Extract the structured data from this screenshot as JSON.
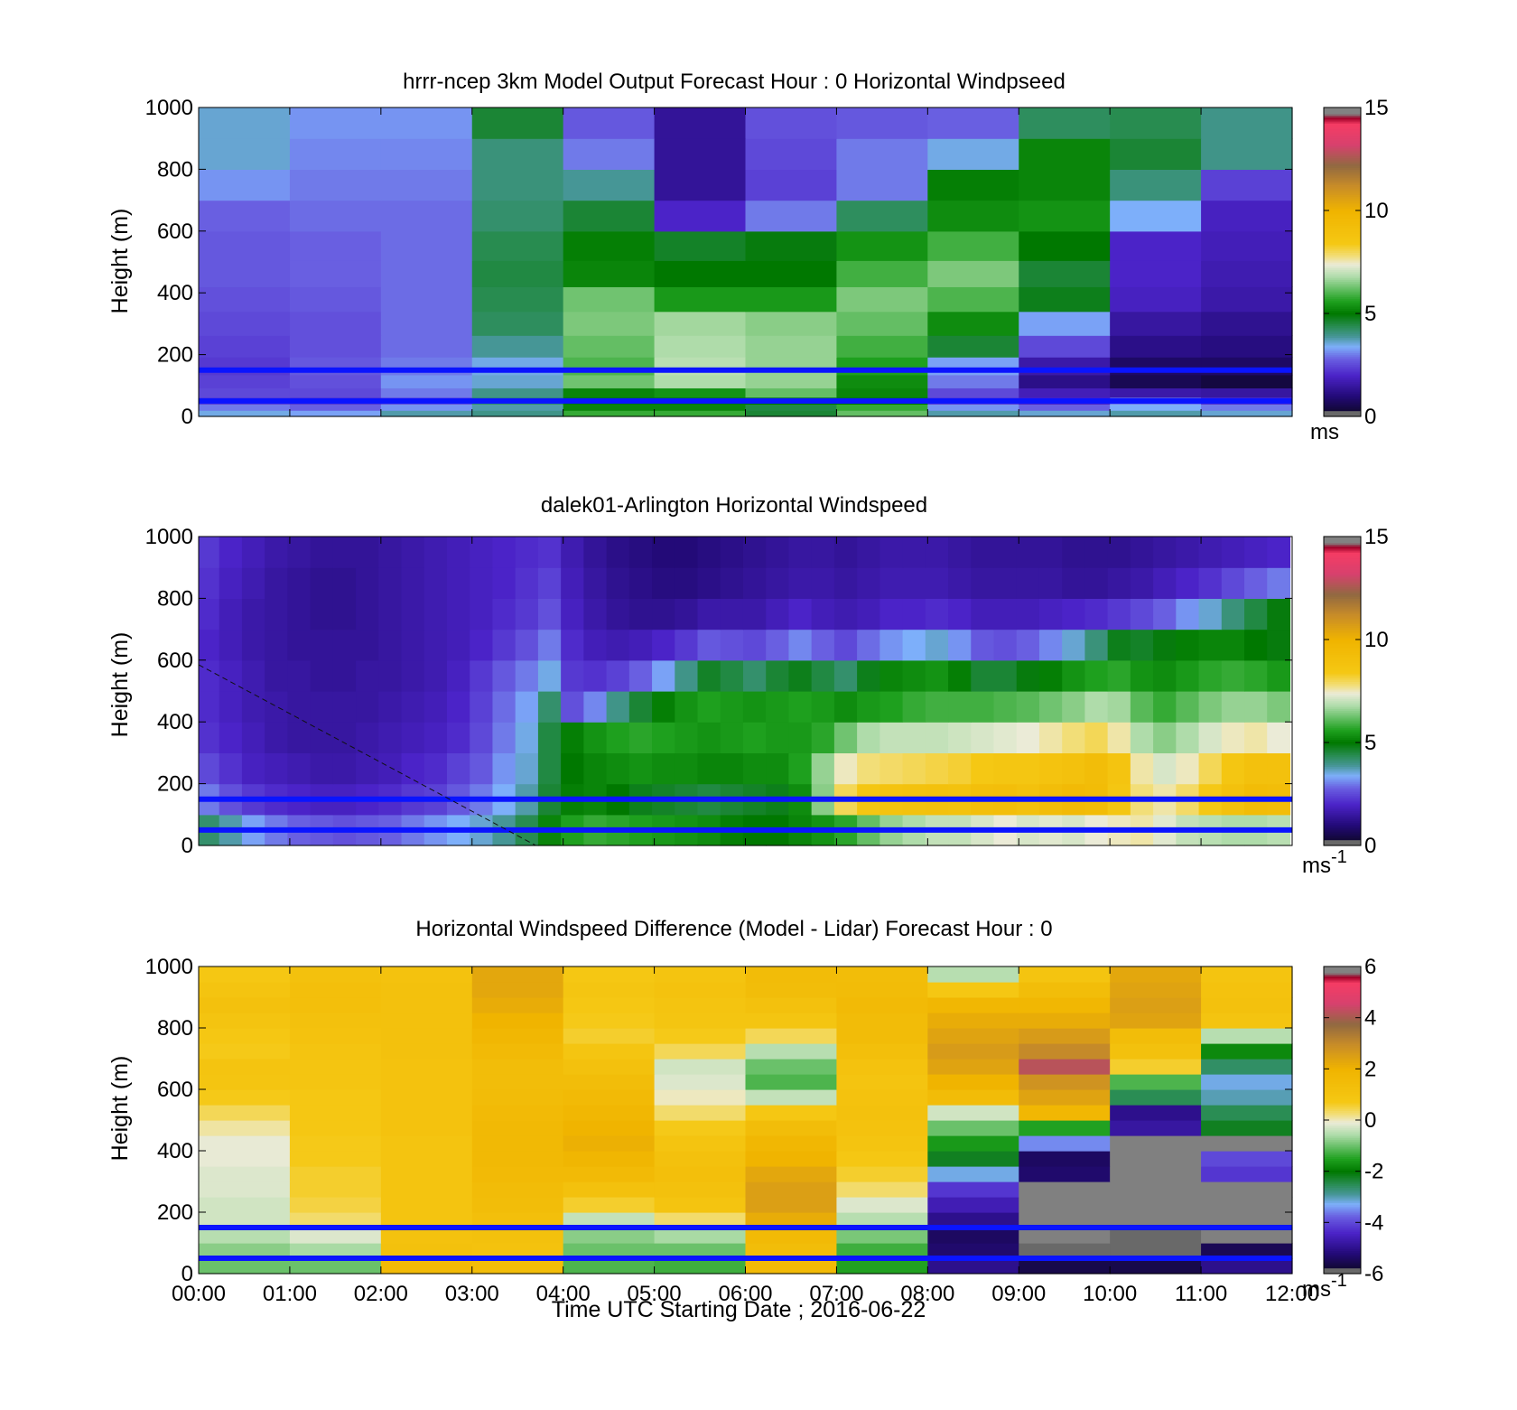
{
  "chart_data": [
    {
      "type": "heatmap",
      "title": "hrrr-ncep 3km Model Output   Forecast Hour : 0 Horizontal Windpseed",
      "ylabel": "Height (m)",
      "xlabel": "",
      "ylim": [
        0,
        1000
      ],
      "yticks": [
        "0",
        "200",
        "400",
        "600",
        "800",
        "1000"
      ],
      "colorbar": {
        "range": [
          0,
          15
        ],
        "ticks": [
          "0",
          "5",
          "10",
          "15"
        ],
        "unit": "ms",
        "unit_sup": ""
      },
      "x_hours": [
        0.5,
        1.5,
        2.5,
        3.5,
        4.5,
        5.5,
        6.5,
        7.5,
        8.5,
        9.5,
        10.5,
        11.5
      ],
      "y_levels": [
        10,
        30,
        50,
        75,
        110,
        160,
        225,
        300,
        380,
        460,
        550,
        650,
        750,
        850,
        950
      ],
      "values": [
        [
          3.5,
          3.3,
          3.8,
          4.0,
          5.8,
          5.8,
          4.6,
          6.2,
          3.8,
          3.6,
          3.8,
          3.6
        ],
        [
          3.0,
          2.8,
          3.2,
          3.8,
          5.2,
          5.2,
          4.5,
          5.8,
          3.2,
          2.8,
          3.4,
          3.0
        ],
        [
          2.4,
          2.3,
          2.6,
          4.2,
          5.0,
          5.0,
          5.0,
          5.0,
          2.4,
          2.0,
          3.0,
          2.2
        ],
        [
          2.5,
          2.5,
          3.0,
          4.0,
          5.2,
          5.4,
          6.2,
          5.2,
          2.5,
          1.8,
          1.6,
          1.5
        ],
        [
          2.4,
          2.6,
          3.2,
          3.6,
          6.3,
          6.8,
          6.6,
          5.3,
          3.0,
          1.2,
          0.6,
          0.4
        ],
        [
          2.3,
          2.7,
          3.0,
          3.5,
          6.0,
          6.9,
          6.6,
          5.6,
          3.3,
          1.6,
          0.8,
          0.8
        ],
        [
          2.4,
          2.6,
          2.9,
          3.9,
          6.2,
          6.8,
          6.6,
          5.9,
          4.6,
          2.5,
          1.2,
          1.1
        ],
        [
          2.5,
          2.6,
          2.9,
          4.3,
          6.4,
          6.7,
          6.5,
          6.2,
          5.3,
          3.3,
          1.5,
          1.3
        ],
        [
          2.6,
          2.7,
          2.9,
          4.4,
          6.3,
          5.5,
          5.5,
          6.4,
          6.0,
          4.8,
          1.9,
          1.6
        ],
        [
          2.7,
          2.8,
          2.9,
          4.5,
          5.2,
          5.0,
          5.0,
          5.9,
          6.4,
          4.6,
          2.0,
          1.7
        ],
        [
          2.7,
          2.8,
          2.9,
          4.4,
          5.1,
          4.7,
          4.9,
          5.4,
          5.9,
          5.0,
          2.0,
          1.8
        ],
        [
          2.8,
          2.9,
          2.9,
          4.2,
          4.6,
          2.0,
          3.0,
          4.3,
          5.3,
          5.4,
          3.4,
          1.9
        ],
        [
          3.2,
          3.0,
          3.0,
          4.1,
          3.9,
          1.4,
          2.4,
          3.0,
          5.1,
          5.2,
          4.1,
          2.4
        ],
        [
          3.6,
          3.1,
          3.1,
          4.1,
          3.0,
          1.4,
          2.5,
          3.0,
          3.5,
          5.2,
          4.6,
          4.0
        ],
        [
          3.6,
          3.2,
          3.2,
          4.6,
          2.7,
          1.4,
          2.6,
          2.7,
          2.8,
          4.3,
          4.4,
          4.0
        ]
      ]
    },
    {
      "type": "heatmap",
      "title": "dalek01-Arlington  Horizontal Windspeed",
      "ylabel": "Height (m)",
      "xlabel": "",
      "ylim": [
        0,
        1000
      ],
      "yticks": [
        "0",
        "200",
        "400",
        "600",
        "800",
        "1000"
      ],
      "colorbar": {
        "range": [
          0,
          15
        ],
        "ticks": [
          "0",
          "5",
          "10",
          "15"
        ],
        "unit": "ms",
        "unit_sup": "-1"
      },
      "x_hours": [
        0.1,
        0.35,
        0.6,
        0.85,
        1.1,
        1.35,
        1.6,
        1.85,
        2.1,
        2.35,
        2.6,
        2.85,
        3.1,
        3.35,
        3.6,
        3.85,
        4.1,
        4.35,
        4.6,
        4.85,
        5.1,
        5.35,
        5.6,
        5.85,
        6.1,
        6.35,
        6.6,
        6.85,
        7.1,
        7.35,
        7.6,
        7.85,
        8.1,
        8.35,
        8.6,
        8.85,
        9.1,
        9.35,
        9.6,
        9.85,
        10.1,
        10.35,
        10.6,
        10.85,
        11.1,
        11.35,
        11.6,
        11.85
      ],
      "y_levels": [
        50,
        150,
        250,
        350,
        450,
        550,
        650,
        750,
        850,
        950
      ],
      "values": [
        [
          4.2,
          3.8,
          3.3,
          3.0,
          2.8,
          2.7,
          2.6,
          2.7,
          2.8,
          3.0,
          3.2,
          3.4,
          3.6,
          3.9,
          4.4,
          5.2,
          5.6,
          5.8,
          5.7,
          5.6,
          5.5,
          5.4,
          5.3,
          5.1,
          5.0,
          5.0,
          5.2,
          5.4,
          5.7,
          6.2,
          6.6,
          6.8,
          7.0,
          7.0,
          7.2,
          7.4,
          7.2,
          7.3,
          7.2,
          7.4,
          7.5,
          7.6,
          7.3,
          7.0,
          6.9,
          6.8,
          6.8,
          6.9
        ],
        [
          3.0,
          2.6,
          2.3,
          2.1,
          2.0,
          1.9,
          1.9,
          2.0,
          2.1,
          2.3,
          2.4,
          2.7,
          3.0,
          3.4,
          3.8,
          4.6,
          5.1,
          5.2,
          5.0,
          4.8,
          4.7,
          4.6,
          4.5,
          4.6,
          4.7,
          4.8,
          5.3,
          6.5,
          8.0,
          8.6,
          8.8,
          8.9,
          9.0,
          8.9,
          9.1,
          9.2,
          9.0,
          9.3,
          9.5,
          9.4,
          8.6,
          7.8,
          7.6,
          7.9,
          8.4,
          9.0,
          9.4,
          9.3
        ],
        [
          2.5,
          2.2,
          1.9,
          1.8,
          1.7,
          1.6,
          1.6,
          1.7,
          1.8,
          2.0,
          2.1,
          2.4,
          2.7,
          3.2,
          3.6,
          4.5,
          5.0,
          5.2,
          5.3,
          5.4,
          5.3,
          5.3,
          5.2,
          5.2,
          5.3,
          5.3,
          5.6,
          6.6,
          7.5,
          7.8,
          7.9,
          8.0,
          8.1,
          8.2,
          8.4,
          8.6,
          8.6,
          8.8,
          9.0,
          9.3,
          8.7,
          7.6,
          7.2,
          7.5,
          8.0,
          8.6,
          9.0,
          9.0
        ],
        [
          2.2,
          2.0,
          1.8,
          1.6,
          1.5,
          1.5,
          1.5,
          1.6,
          1.7,
          1.8,
          1.9,
          2.1,
          2.5,
          3.0,
          3.5,
          4.5,
          5.1,
          5.4,
          5.6,
          5.7,
          5.6,
          5.5,
          5.4,
          5.5,
          5.6,
          5.5,
          5.5,
          5.7,
          6.3,
          6.8,
          7.0,
          7.0,
          7.0,
          7.1,
          7.2,
          7.3,
          7.4,
          7.6,
          7.8,
          8.0,
          7.6,
          6.8,
          6.5,
          6.8,
          7.2,
          7.5,
          7.6,
          7.4
        ],
        [
          2.1,
          1.9,
          1.7,
          1.6,
          1.5,
          1.5,
          1.5,
          1.5,
          1.6,
          1.7,
          1.8,
          2.0,
          2.4,
          2.9,
          3.3,
          4.2,
          2.6,
          3.1,
          4.0,
          4.6,
          5.1,
          5.4,
          5.6,
          5.5,
          5.4,
          5.5,
          5.6,
          5.5,
          5.3,
          5.5,
          5.6,
          5.8,
          5.9,
          5.9,
          5.9,
          6.0,
          6.1,
          6.3,
          6.5,
          6.8,
          6.7,
          6.1,
          5.8,
          6.1,
          6.4,
          6.6,
          6.6,
          6.4
        ],
        [
          2.1,
          1.9,
          1.7,
          1.5,
          1.5,
          1.4,
          1.4,
          1.5,
          1.5,
          1.6,
          1.7,
          1.9,
          2.3,
          2.7,
          3.0,
          3.5,
          2.3,
          2.2,
          2.4,
          2.8,
          3.3,
          4.0,
          4.7,
          4.5,
          4.2,
          4.6,
          4.8,
          4.5,
          4.2,
          4.8,
          5.2,
          5.3,
          5.4,
          5.1,
          4.6,
          4.6,
          4.9,
          5.1,
          5.4,
          5.6,
          5.7,
          5.4,
          5.3,
          5.5,
          5.7,
          5.8,
          5.7,
          5.5
        ],
        [
          2.0,
          1.8,
          1.6,
          1.5,
          1.4,
          1.4,
          1.4,
          1.4,
          1.5,
          1.6,
          1.7,
          1.8,
          2.0,
          2.3,
          2.6,
          3.0,
          2.1,
          1.8,
          1.7,
          1.8,
          2.0,
          2.3,
          2.7,
          2.6,
          2.5,
          2.8,
          3.1,
          2.8,
          2.5,
          2.9,
          3.2,
          3.4,
          3.6,
          3.2,
          2.7,
          2.6,
          2.8,
          3.1,
          3.6,
          4.1,
          4.8,
          4.7,
          4.9,
          5.1,
          5.2,
          5.2,
          5.0,
          4.9
        ],
        [
          2.1,
          1.8,
          1.6,
          1.5,
          1.4,
          1.3,
          1.3,
          1.4,
          1.5,
          1.6,
          1.7,
          1.8,
          1.9,
          2.1,
          2.3,
          2.6,
          1.9,
          1.6,
          1.4,
          1.3,
          1.3,
          1.4,
          1.6,
          1.6,
          1.6,
          1.8,
          2.0,
          1.8,
          1.7,
          1.8,
          2.0,
          2.0,
          2.1,
          2.0,
          1.8,
          1.8,
          1.8,
          1.9,
          2.0,
          2.1,
          2.3,
          2.5,
          2.8,
          3.2,
          3.6,
          4.1,
          4.5,
          4.9
        ],
        [
          2.2,
          1.9,
          1.7,
          1.5,
          1.4,
          1.3,
          1.3,
          1.4,
          1.5,
          1.6,
          1.7,
          1.8,
          1.9,
          2.0,
          2.2,
          2.4,
          1.8,
          1.5,
          1.3,
          1.2,
          1.1,
          1.1,
          1.2,
          1.3,
          1.4,
          1.5,
          1.6,
          1.6,
          1.5,
          1.6,
          1.7,
          1.7,
          1.7,
          1.6,
          1.5,
          1.5,
          1.5,
          1.5,
          1.4,
          1.4,
          1.5,
          1.6,
          1.8,
          2.0,
          2.2,
          2.5,
          2.8,
          3.0
        ],
        [
          2.3,
          2.0,
          1.8,
          1.6,
          1.5,
          1.4,
          1.4,
          1.4,
          1.5,
          1.6,
          1.7,
          1.8,
          1.9,
          2.0,
          2.1,
          2.2,
          1.7,
          1.4,
          1.2,
          1.1,
          1.0,
          1.0,
          1.1,
          1.2,
          1.3,
          1.4,
          1.5,
          1.5,
          1.4,
          1.5,
          1.6,
          1.6,
          1.6,
          1.5,
          1.4,
          1.4,
          1.4,
          1.4,
          1.3,
          1.3,
          1.3,
          1.4,
          1.5,
          1.6,
          1.7,
          1.8,
          1.9,
          2.0
        ]
      ]
    },
    {
      "type": "heatmap",
      "title": "Horizontal Windspeed Difference (Model - Lidar) Forecast Hour : 0",
      "ylabel": "Height (m)",
      "xlabel": "Time UTC  Starting Date ; 2016-06-22",
      "ylim": [
        0,
        1000
      ],
      "yticks": [
        "0",
        "200",
        "400",
        "600",
        "800",
        "1000"
      ],
      "xticks": [
        "00:00",
        "01:00",
        "02:00",
        "03:00",
        "04:00",
        "05:00",
        "06:00",
        "07:00",
        "08:00",
        "09:00",
        "10:00",
        "11:00",
        "12:00"
      ],
      "colorbar": {
        "range": [
          -6,
          6
        ],
        "ticks": [
          "-6",
          "-4",
          "-2",
          "0",
          "2",
          "4",
          "6"
        ],
        "unit": "ms",
        "unit_sup": "-1"
      },
      "x_hours": [
        0.5,
        1.5,
        2.5,
        3.5,
        4.5,
        5.5,
        6.5,
        7.5,
        8.5,
        9.5,
        10.5,
        11.5
      ],
      "y_levels": [
        25,
        75,
        125,
        175,
        225,
        275,
        325,
        375,
        425,
        475,
        525,
        575,
        625,
        675,
        725,
        775,
        825,
        875,
        925,
        975
      ],
      "values": [
        [
          -1.0,
          -1.0,
          1.6,
          1.4,
          -1.2,
          -1.3,
          1.6,
          -1.5,
          -5.0,
          -5.6,
          -5.6,
          -5.0
        ],
        [
          -0.8,
          -0.6,
          1.2,
          1.1,
          -1.0,
          -1.0,
          1.4,
          -1.3,
          -5.3,
          -5.8,
          -5.8,
          -5.5
        ],
        [
          -0.5,
          -0.2,
          1.1,
          1.2,
          -0.8,
          -0.6,
          1.6,
          -0.9,
          -5.4,
          "nan",
          -5.9,
          "nan"
        ],
        [
          -0.3,
          0.3,
          1.0,
          1.3,
          -0.4,
          0.3,
          2.2,
          -0.5,
          -5.0,
          "nan",
          "nan",
          "nan"
        ],
        [
          -0.3,
          0.5,
          1.0,
          1.4,
          0.6,
          1.0,
          2.5,
          -0.2,
          -4.6,
          "nan",
          "nan",
          "nan"
        ],
        [
          -0.2,
          0.6,
          1.0,
          1.5,
          1.2,
          1.2,
          2.5,
          0.3,
          -4.2,
          "nan",
          "nan",
          "nan"
        ],
        [
          -0.2,
          0.6,
          1.0,
          1.6,
          1.6,
          1.3,
          2.3,
          0.6,
          -3.2,
          -5.3,
          "nan",
          -4.2
        ],
        [
          -0.1,
          0.7,
          1.0,
          1.7,
          1.9,
          1.2,
          2.0,
          0.8,
          -2.2,
          -5.4,
          "nan",
          -4.0
        ],
        [
          -0.1,
          0.7,
          1.0,
          1.7,
          2.1,
          1.0,
          1.8,
          1.0,
          -1.6,
          -3.5,
          "nan",
          "nan"
        ],
        [
          0.1,
          0.8,
          1.1,
          1.7,
          2.0,
          0.7,
          1.4,
          1.1,
          -1.0,
          -1.5,
          -4.8,
          -2.2
        ],
        [
          0.4,
          0.8,
          1.1,
          1.6,
          1.8,
          0.3,
          0.8,
          1.2,
          -0.3,
          1.8,
          -5.0,
          -2.5
        ],
        [
          0.7,
          0.8,
          1.1,
          1.5,
          1.6,
          0.0,
          -0.4,
          1.1,
          1.5,
          2.4,
          -2.5,
          -3.0
        ],
        [
          0.9,
          0.9,
          1.1,
          1.4,
          1.4,
          -0.2,
          -1.2,
          1.0,
          2.0,
          2.8,
          -1.2,
          -3.2
        ],
        [
          1.0,
          0.9,
          1.1,
          1.4,
          1.2,
          -0.3,
          -1.0,
          1.1,
          2.4,
          4.2,
          0.6,
          -2.6
        ],
        [
          0.7,
          1.0,
          1.2,
          1.6,
          0.9,
          0.4,
          -0.5,
          1.3,
          2.6,
          3.0,
          1.2,
          -1.8
        ],
        [
          0.8,
          1.1,
          1.2,
          1.8,
          0.6,
          0.7,
          0.4,
          1.5,
          2.4,
          2.6,
          1.4,
          -0.5
        ],
        [
          1.0,
          1.2,
          1.2,
          2.0,
          0.7,
          0.9,
          0.9,
          1.5,
          2.2,
          2.2,
          2.4,
          1.0
        ],
        [
          1.2,
          1.3,
          1.2,
          2.2,
          0.8,
          1.0,
          1.2,
          1.6,
          1.8,
          1.8,
          2.5,
          1.2
        ],
        [
          1.0,
          1.3,
          1.2,
          2.3,
          0.9,
          1.1,
          1.4,
          1.5,
          0.8,
          1.4,
          2.4,
          1.1
        ],
        [
          0.8,
          1.2,
          1.1,
          2.3,
          0.8,
          1.0,
          1.5,
          1.4,
          -0.5,
          1.0,
          2.3,
          1.0
        ]
      ]
    }
  ]
}
